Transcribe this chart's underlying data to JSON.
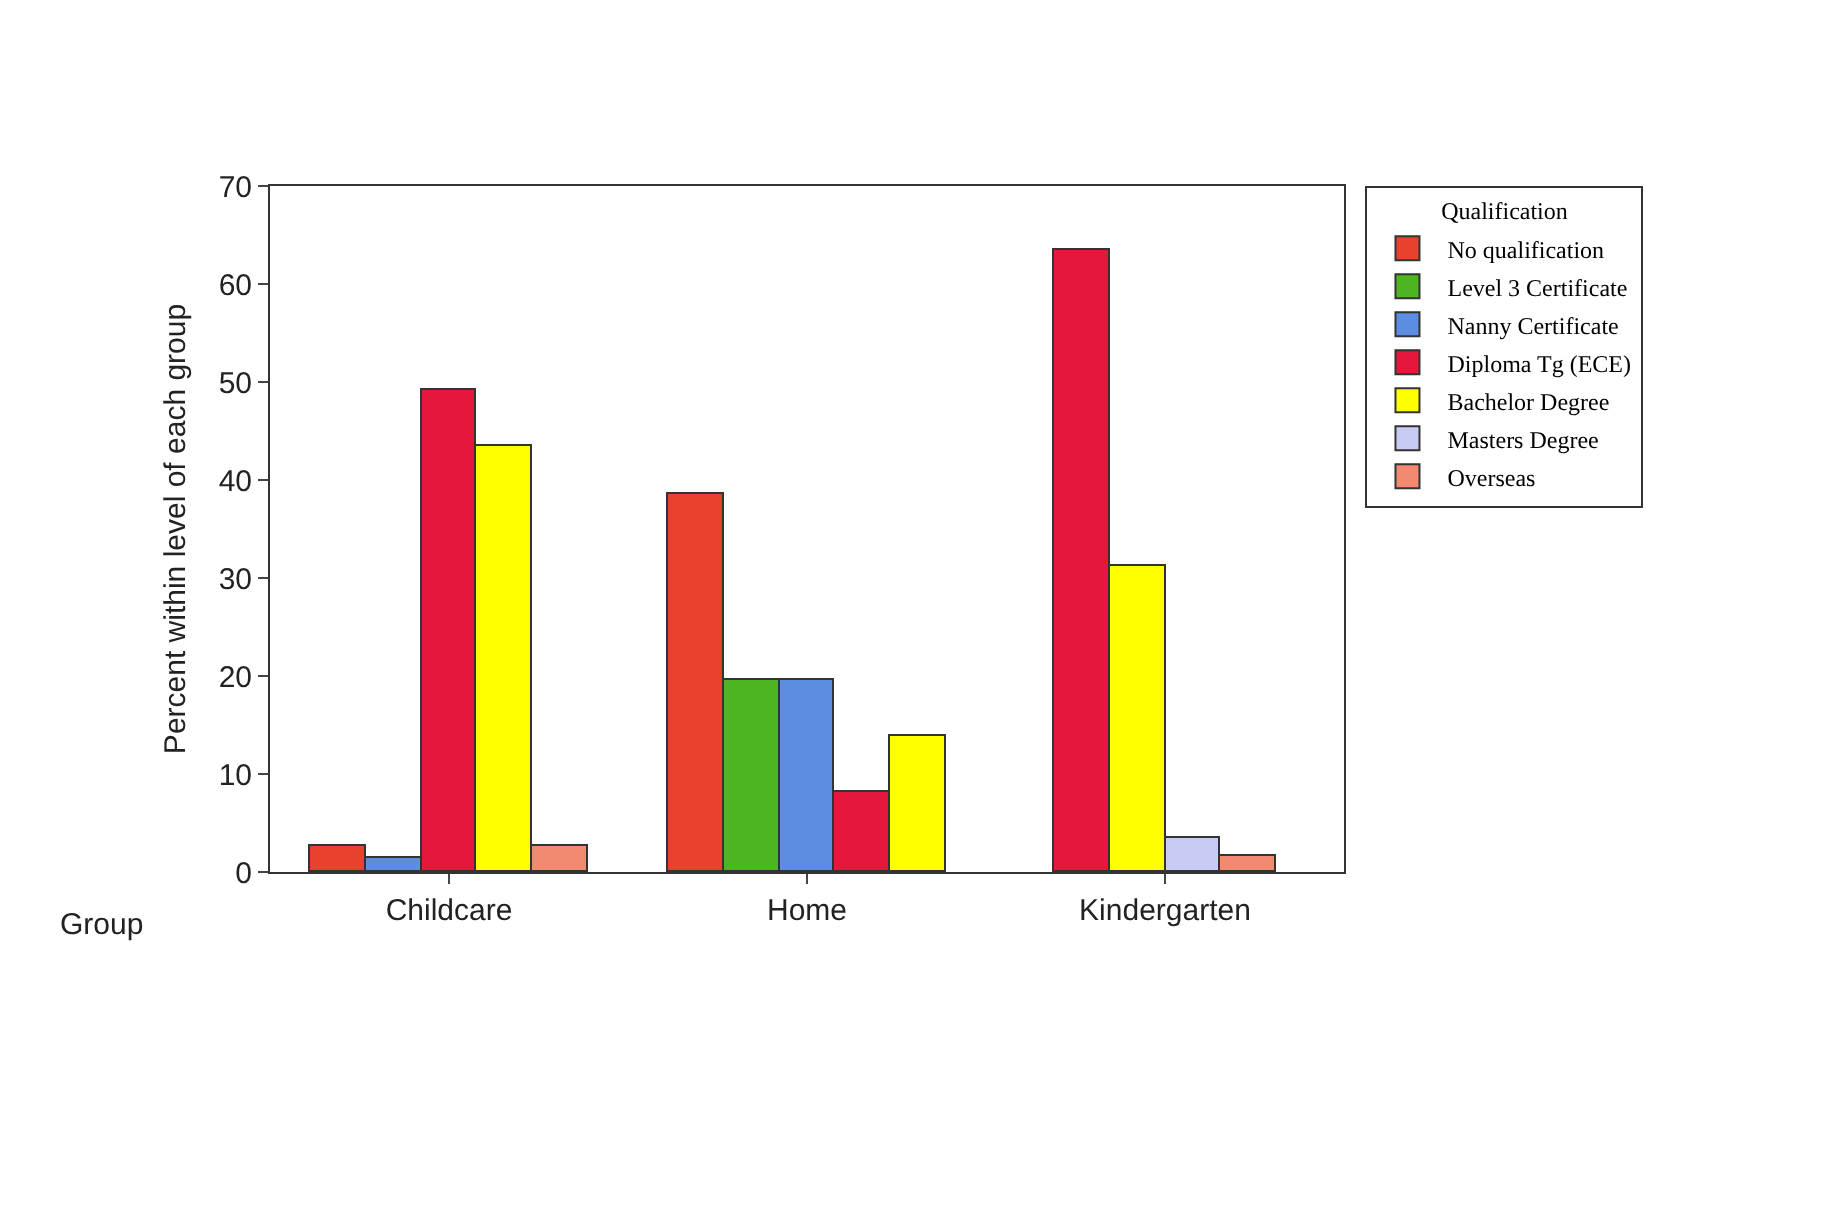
{
  "chart_data": {
    "type": "bar",
    "xlabel": "Group",
    "ylabel": "Percent within level of each group",
    "legend_title": "Qualification",
    "legend": "top right",
    "categories": [
      "Childcare",
      "Home",
      "Kindergarten"
    ],
    "series": [
      {
        "name": "No qualification",
        "color": "#e8412c",
        "values": [
          2.7,
          38.6,
          null
        ]
      },
      {
        "name": "Level 3 Certificate",
        "color": "#4cb520",
        "values": [
          null,
          19.6,
          null
        ]
      },
      {
        "name": "Nanny Certificate",
        "color": "#5b8de0",
        "values": [
          1.5,
          19.6,
          null
        ]
      },
      {
        "name": "Diploma Tg (ECE)",
        "color": "#e5173a",
        "values": [
          49.1,
          8.2,
          63.4
        ]
      },
      {
        "name": "Bachelor Degree",
        "color": "#ffff00",
        "values": [
          43.5,
          13.8,
          31.2
        ]
      },
      {
        "name": "Masters Degree",
        "color": "#c8ccf4",
        "values": [
          null,
          null,
          3.4
        ]
      },
      {
        "name": "Overseas",
        "color": "#f08a70",
        "values": [
          2.7,
          null,
          1.7
        ]
      }
    ],
    "ylim": [
      0,
      70
    ],
    "yticks": [
      0,
      10,
      20,
      30,
      40,
      50,
      60,
      70
    ],
    "grid": false
  }
}
